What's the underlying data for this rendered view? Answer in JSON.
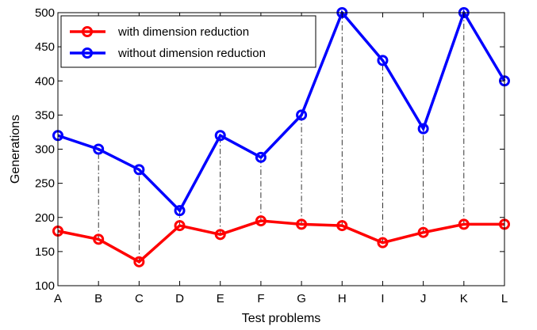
{
  "chart_data": {
    "type": "line",
    "xlabel": "Test problems",
    "ylabel": "Generations",
    "categories": [
      "A",
      "B",
      "C",
      "D",
      "E",
      "F",
      "G",
      "H",
      "I",
      "J",
      "K",
      "L"
    ],
    "ylim": [
      100,
      500
    ],
    "yticks": [
      100,
      150,
      200,
      250,
      300,
      350,
      400,
      450,
      500
    ],
    "grid": false,
    "legend_position": "top-left",
    "series": [
      {
        "name": "with dimension reduction",
        "color": "#ff0000",
        "values": [
          180,
          168,
          135,
          188,
          175,
          195,
          190,
          188,
          163,
          178,
          190,
          190
        ]
      },
      {
        "name": "without dimension reduction",
        "color": "#0000ff",
        "values": [
          320,
          300,
          270,
          210,
          320,
          288,
          350,
          500,
          430,
          330,
          500,
          400
        ]
      }
    ],
    "annotations": "dash-dot vertical connectors between paired points of the two series"
  }
}
